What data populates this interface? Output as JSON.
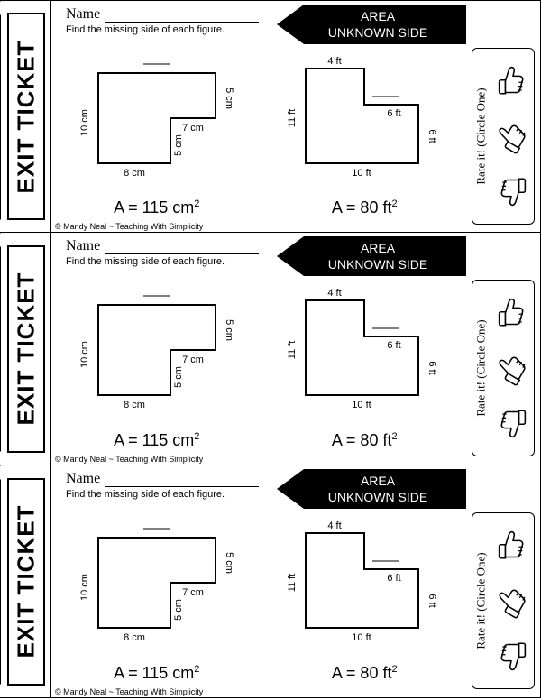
{
  "stub_text": "EXIT TICKET",
  "name_label": "Name",
  "instruction": "Find the missing side of each figure.",
  "banner_line1": "AREA",
  "banner_line2": "UNKNOWN SIDE",
  "rate_label": "Rate it! (Circle One)",
  "copyright": "© Mandy Neal ~ Teaching With Simplicity",
  "figure1": {
    "type": "L-shape",
    "unit": "cm",
    "labels": {
      "left": "10 cm",
      "bottom": "8 cm",
      "inner_bottom": "7 cm",
      "inner_left": "5 cm",
      "right_top": "5 cm",
      "top_blank": "____"
    },
    "area_text": "A = 115 cm",
    "area_exp": "2",
    "outline_color": "#000000",
    "stroke_width": 2
  },
  "figure2": {
    "type": "L-shape",
    "unit": "ft",
    "labels": {
      "top": "4 ft",
      "inner_top": "6 ft",
      "left": "11 ft",
      "right_lower": "6 ft",
      "bottom": "10 ft",
      "inner_blank": "____"
    },
    "area_text": "A = 80 ft",
    "area_exp": "2",
    "outline_color": "#000000",
    "stroke_width": 2
  },
  "thumbs": [
    "up",
    "side",
    "down"
  ]
}
